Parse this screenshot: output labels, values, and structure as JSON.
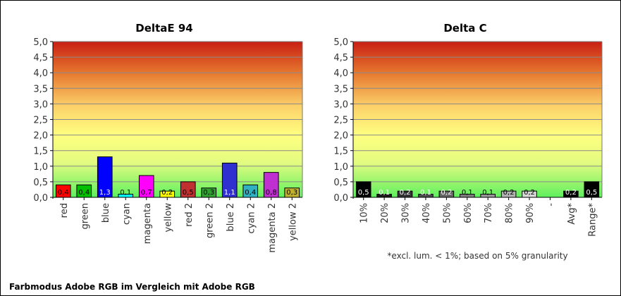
{
  "caption": "Farbmodus Adobe RGB im Vergleich mit Adobe RGB",
  "chart_data": [
    {
      "type": "bar",
      "title": "DeltaE 94",
      "xlabel": "",
      "ylabel": "",
      "ylim": [
        0,
        5
      ],
      "yticks": [
        "0,0",
        "0,5",
        "1,0",
        "1,5",
        "2,0",
        "2,5",
        "3,0",
        "3,5",
        "4,0",
        "4,5",
        "5,0"
      ],
      "categories": [
        "red",
        "green",
        "blue",
        "cyan",
        "magenta",
        "yellow",
        "red 2",
        "green 2",
        "blue 2",
        "cyan 2",
        "magenta 2",
        "yellow 2"
      ],
      "values": [
        0.4,
        0.4,
        1.3,
        0.1,
        0.7,
        0.2,
        0.5,
        0.3,
        1.1,
        0.4,
        0.8,
        0.3
      ],
      "value_labels": [
        "0,4",
        "0,4",
        "1,3",
        "0,1",
        "0,7",
        "0,2",
        "0,5",
        "0,3",
        "1,1",
        "0,4",
        "0,8",
        "0,3"
      ],
      "bar_colors": [
        "#ff0000",
        "#00c000",
        "#0000ff",
        "#00ffff",
        "#ff00ff",
        "#ffff00",
        "#c03030",
        "#30a030",
        "#3030d0",
        "#30b0c0",
        "#c030d0",
        "#c0b030"
      ],
      "label_colors": [
        "#000000",
        "#000000",
        "#ffffff",
        "#000000",
        "#000000",
        "#000000",
        "#000000",
        "#000000",
        "#ffffff",
        "#000000",
        "#000000",
        "#000000"
      ],
      "footnote": ""
    },
    {
      "type": "bar",
      "title": "Delta C",
      "xlabel": "",
      "ylabel": "",
      "ylim": [
        0,
        5
      ],
      "yticks": [
        "0,0",
        "0,5",
        "1,0",
        "1,5",
        "2,0",
        "2,5",
        "3,0",
        "3,5",
        "4,0",
        "4,5",
        "5,0"
      ],
      "categories": [
        "10%",
        "20%",
        "30%",
        "40%",
        "50%",
        "60%",
        "70%",
        "80%",
        "90%",
        "-",
        "Avg*",
        "Range*"
      ],
      "values": [
        0.5,
        0.1,
        0.2,
        0.1,
        0.2,
        0.1,
        0.1,
        0.2,
        0.2,
        null,
        0.2,
        0.5
      ],
      "value_labels": [
        "0,5",
        "0,1",
        "0,2",
        "0,1",
        "0,2",
        "0,1",
        "0,1",
        "0,2",
        "0,2",
        "",
        "0,2",
        "0,5"
      ],
      "bar_colors": [
        "#000000",
        "#1a1a1a",
        "#333333",
        "#4d4d4d",
        "#666666",
        "#808080",
        "#999999",
        "#b3b3b3",
        "#d9d9d9",
        "#ffffff",
        "#000000",
        "#000000"
      ],
      "label_colors": [
        "#ffffff",
        "#ffffff",
        "#ffffff",
        "#ffffff",
        "#ffffff",
        "#000000",
        "#000000",
        "#000000",
        "#000000",
        "#000000",
        "#ffffff",
        "#ffffff"
      ],
      "footnote": "*excl. lum. < 1%; based on 5% granularity"
    }
  ]
}
